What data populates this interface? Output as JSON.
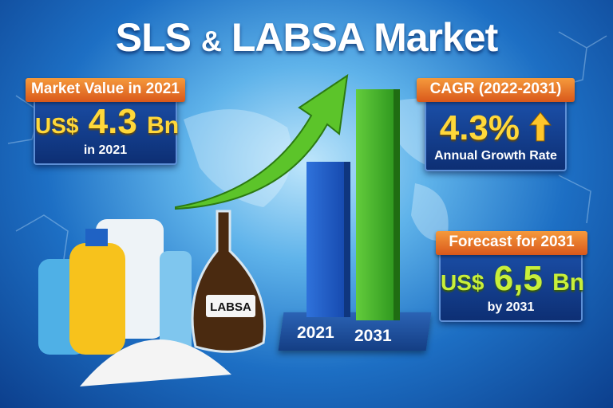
{
  "title": {
    "part1": "SLS",
    "amp": "&",
    "part2": "LABSA Market"
  },
  "market_value": {
    "label": "Market Value in 2021",
    "prefix": "US$",
    "value": "4.3",
    "unit": "Bn",
    "sub": "in 2021"
  },
  "cagr": {
    "label": "CAGR (2022-2031)",
    "value": "4.3%",
    "sub": "Annual Growth Rate",
    "icon": "arrow-up-icon"
  },
  "forecast": {
    "label": "Forecast for 2031",
    "prefix": "US$",
    "value": "6,5",
    "unit": "Bn",
    "sub": "by 2031"
  },
  "chart": {
    "categories": [
      "2021",
      "2031"
    ],
    "colors": [
      "#1f5fc9",
      "#3fae2a"
    ]
  },
  "flask_label": "LABSA",
  "colors": {
    "ribbon": "#e9732a",
    "card": "#163f93",
    "value_yellow": "#ffd83a",
    "value_green": "#c8ef3a",
    "arrow": "#5cc42a"
  }
}
